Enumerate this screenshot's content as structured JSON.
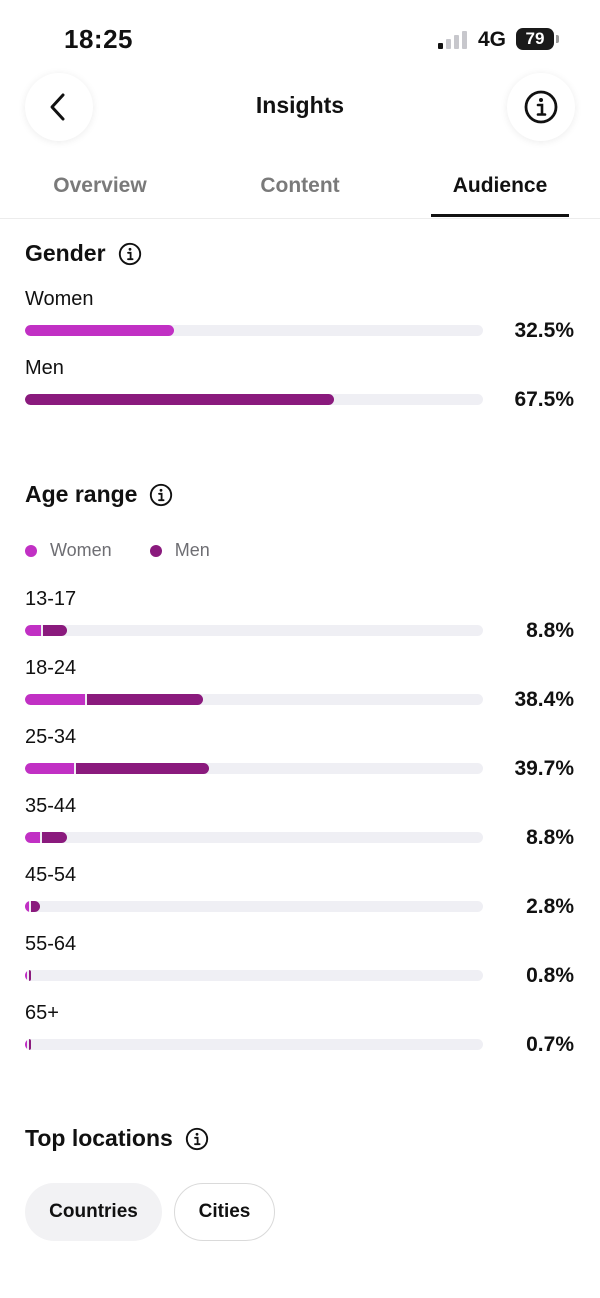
{
  "status_bar": {
    "time": "18:25",
    "network": "4G",
    "battery": "79"
  },
  "header": {
    "title": "Insights",
    "back_icon": "chevron-left-icon",
    "info_icon": "info-icon"
  },
  "tabs": [
    {
      "label": "Overview",
      "active": false
    },
    {
      "label": "Content",
      "active": false
    },
    {
      "label": "Audience",
      "active": true
    }
  ],
  "colors": {
    "women": "#c130c4",
    "men": "#8a1a7d",
    "track": "#efeff4"
  },
  "gender": {
    "title": "Gender",
    "rows": [
      {
        "label": "Women",
        "percent": "32.5%",
        "value": 32.5,
        "series": "women"
      },
      {
        "label": "Men",
        "percent": "67.5%",
        "value": 67.5,
        "series": "men"
      }
    ]
  },
  "age_range": {
    "title": "Age range",
    "legend": [
      {
        "label": "Women"
      },
      {
        "label": "Men"
      }
    ],
    "rows": [
      {
        "label": "13-17",
        "percent": "8.8%",
        "women": 3.6,
        "men": 5.2
      },
      {
        "label": "18-24",
        "percent": "38.4%",
        "women": 13.0,
        "men": 25.4
      },
      {
        "label": "25-34",
        "percent": "39.7%",
        "women": 10.8,
        "men": 28.9
      },
      {
        "label": "35-44",
        "percent": "8.8%",
        "women": 3.2,
        "men": 5.6
      },
      {
        "label": "45-54",
        "percent": "2.8%",
        "women": 0.9,
        "men": 1.9
      },
      {
        "label": "55-64",
        "percent": "0.8%",
        "women": 0.3,
        "men": 0.5
      },
      {
        "label": "65+",
        "percent": "0.7%",
        "women": 0.3,
        "men": 0.4
      }
    ]
  },
  "top_locations": {
    "title": "Top locations",
    "chips": [
      {
        "label": "Countries",
        "selected": true
      },
      {
        "label": "Cities",
        "selected": false
      }
    ]
  }
}
